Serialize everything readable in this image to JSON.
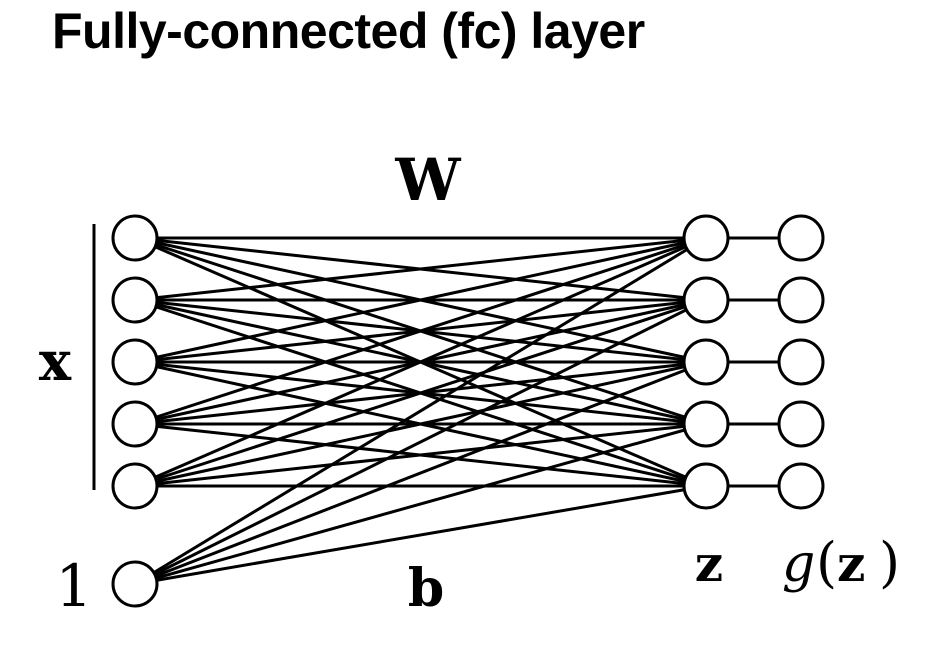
{
  "title": "Fully-connected (fc) layer",
  "labels": {
    "weights": "W",
    "input": "x",
    "bias_value": "1",
    "bias": "b",
    "pre_activation": "z",
    "activation_func": "g",
    "activation_open": "(",
    "activation_arg": "z",
    "activation_close": ")"
  },
  "network": {
    "input_units": 5,
    "bias_units": 1,
    "output_units": 5,
    "activation_units": 5,
    "connectivity": "fully-connected"
  },
  "colors": {
    "stroke": "#000000",
    "node_fill": "#ffffff",
    "background": "#ffffff"
  }
}
